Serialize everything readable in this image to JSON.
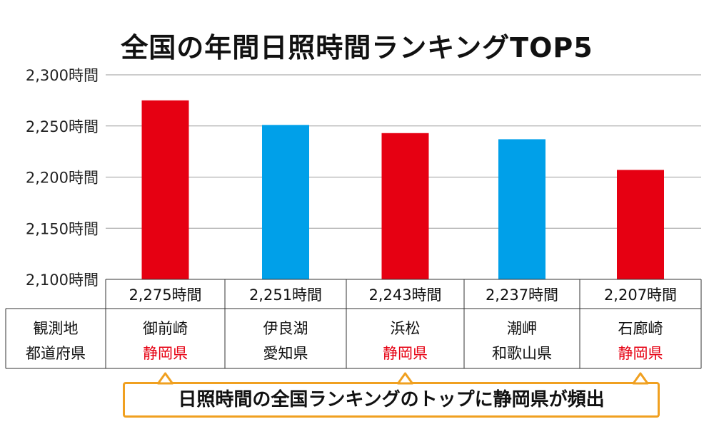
{
  "chart_data": {
    "type": "bar",
    "title": "全国の年間日照時間ランキングTOP5",
    "y_tick_labels": [
      "2,300時間",
      "2,250時間",
      "2,200時間",
      "2,150時間",
      "2,100時間"
    ],
    "y_ticks": [
      2300,
      2250,
      2200,
      2150,
      2100
    ],
    "ylim": [
      2100,
      2300
    ],
    "grid": true,
    "categories": [
      "御前崎",
      "伊良湖",
      "浜松",
      "潮岬",
      "石廊崎"
    ],
    "values": [
      2275,
      2251,
      2243,
      2237,
      2207
    ],
    "value_labels": [
      "2,275時間",
      "2,251時間",
      "2,243時間",
      "2,237時間",
      "2,207時間"
    ],
    "prefectures": [
      "静岡県",
      "愛知県",
      "静岡県",
      "和歌山県",
      "静岡県"
    ],
    "highlight": [
      true,
      false,
      true,
      false,
      true
    ],
    "colors": {
      "highlight": "#e60012",
      "other": "#00a0e9"
    }
  },
  "table": {
    "row_header_line1": "観測地",
    "row_header_line2": "都道府県"
  },
  "callout": {
    "text": "日照時間の全国ランキングのトップに静岡県が頻出",
    "border_color": "#f0a020"
  }
}
